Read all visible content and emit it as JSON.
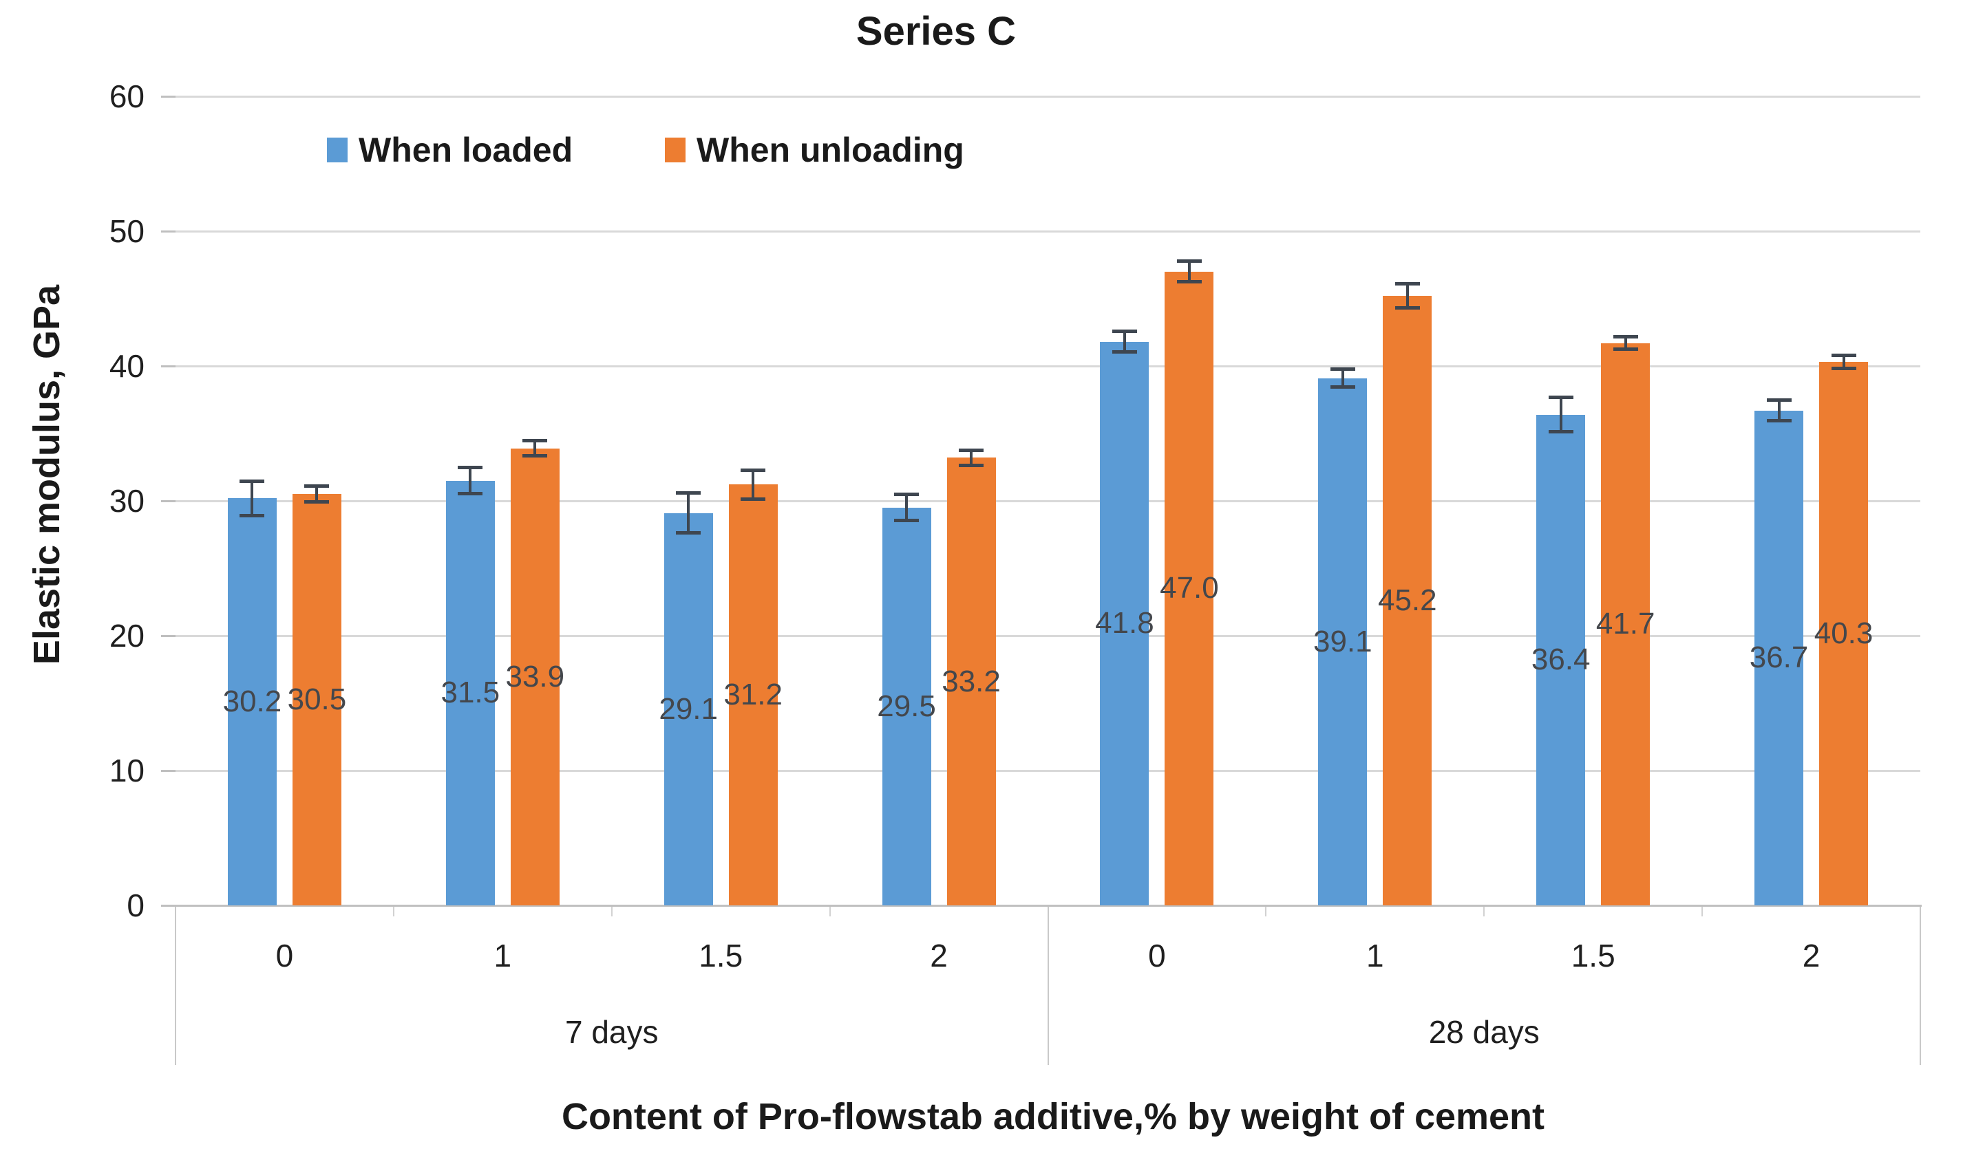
{
  "page": {
    "background": "#FFFFFF"
  },
  "chart_data": {
    "type": "bar",
    "title": "Series C",
    "ylabel": "Elastic modulus, GPa",
    "xlabel": "Content of Pro-flowstab additive,% by weight of cement",
    "ylim": [
      0,
      60
    ],
    "ytick_step": 10,
    "yticks": [
      "0",
      "10",
      "20",
      "30",
      "40",
      "50",
      "60"
    ],
    "grid": true,
    "legend_position": "inside-top-left",
    "groups": [
      {
        "label": "7 days",
        "categories": [
          "0",
          "1",
          "1.5",
          "2"
        ]
      },
      {
        "label": "28 days",
        "categories": [
          "0",
          "1",
          "1.5",
          "2"
        ]
      }
    ],
    "series": [
      {
        "name": "When loaded",
        "color": "#5B9BD5",
        "values": [
          30.2,
          31.5,
          29.1,
          29.5,
          41.8,
          39.1,
          36.4,
          36.7
        ],
        "errors": [
          1.3,
          1.0,
          1.5,
          1.0,
          0.8,
          0.7,
          1.3,
          0.8
        ]
      },
      {
        "name": "When unloading",
        "color": "#ED7D31",
        "values": [
          30.5,
          33.9,
          31.2,
          33.2,
          47.0,
          45.2,
          41.7,
          40.3
        ],
        "errors": [
          0.6,
          0.6,
          1.1,
          0.6,
          0.8,
          0.9,
          0.5,
          0.5
        ]
      }
    ],
    "data_labels": {
      "show": true,
      "decimals": 1,
      "position": "inside-center",
      "color": "#44474C"
    },
    "colors": {
      "gridline": "#D9D9D9",
      "axis_line": "#C0C0C0",
      "error_bar": "#3E4650",
      "title_text": "#1A1A1A",
      "tick_text": "#1F1F1F"
    }
  }
}
